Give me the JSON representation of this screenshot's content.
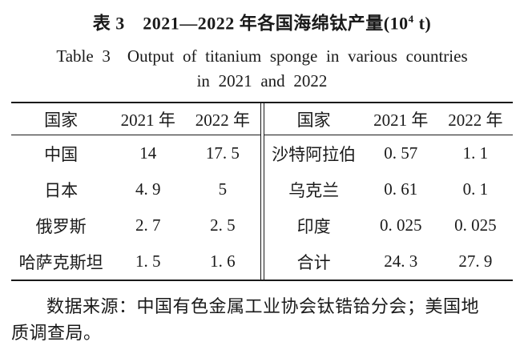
{
  "title": {
    "zh_prefix": "表 3　2021—2022 年各国海绵钛产量(10",
    "zh_sup": "4",
    "zh_suffix": " t)",
    "en_line1": "Table 3　Output of titanium sponge in various countries",
    "en_line2": "in 2021 and 2022"
  },
  "chart_data": {
    "type": "table",
    "title": "表3 2021—2022 年各国海绵钛产量(10^4 t) / Table 3 Output of titanium sponge in various countries in 2021 and 2022",
    "unit": "10^4 t",
    "columns": [
      "国家",
      "2021 年",
      "2022 年"
    ],
    "rows": [
      {
        "country": "中国",
        "y2021": 14,
        "y2022": 17.5
      },
      {
        "country": "日本",
        "y2021": 4.9,
        "y2022": 5
      },
      {
        "country": "俄罗斯",
        "y2021": 2.7,
        "y2022": 2.5
      },
      {
        "country": "哈萨克斯坦",
        "y2021": 1.5,
        "y2022": 1.6
      },
      {
        "country": "沙特阿拉伯",
        "y2021": 0.57,
        "y2022": 1.1
      },
      {
        "country": "乌克兰",
        "y2021": 0.61,
        "y2022": 0.1
      },
      {
        "country": "印度",
        "y2021": 0.025,
        "y2022": 0.025
      },
      {
        "country": "合计",
        "y2021": 24.3,
        "y2022": 27.9
      }
    ]
  },
  "table": {
    "left": {
      "headers": [
        "国家",
        "2021 年",
        "2022 年"
      ],
      "rows": [
        [
          "中国",
          "14",
          "17. 5"
        ],
        [
          "日本",
          "4. 9",
          "5"
        ],
        [
          "俄罗斯",
          "2. 7",
          "2. 5"
        ],
        [
          "哈萨克斯坦",
          "1. 5",
          "1. 6"
        ]
      ]
    },
    "right": {
      "headers": [
        "国家",
        "2021 年",
        "2022 年"
      ],
      "rows": [
        [
          "沙特阿拉伯",
          "0. 57",
          "1. 1"
        ],
        [
          "乌克兰",
          "0. 61",
          "0. 1"
        ],
        [
          "印度",
          "0. 025",
          "0. 025"
        ],
        [
          "合计",
          "24. 3",
          "27. 9"
        ]
      ]
    }
  },
  "source_note": "数据来源：中国有色金属工业协会钛锆铪分会；美国地质调查局。",
  "colors": {
    "text": "#1a1a1a",
    "rule": "#1a1a1a",
    "background": "#ffffff"
  }
}
